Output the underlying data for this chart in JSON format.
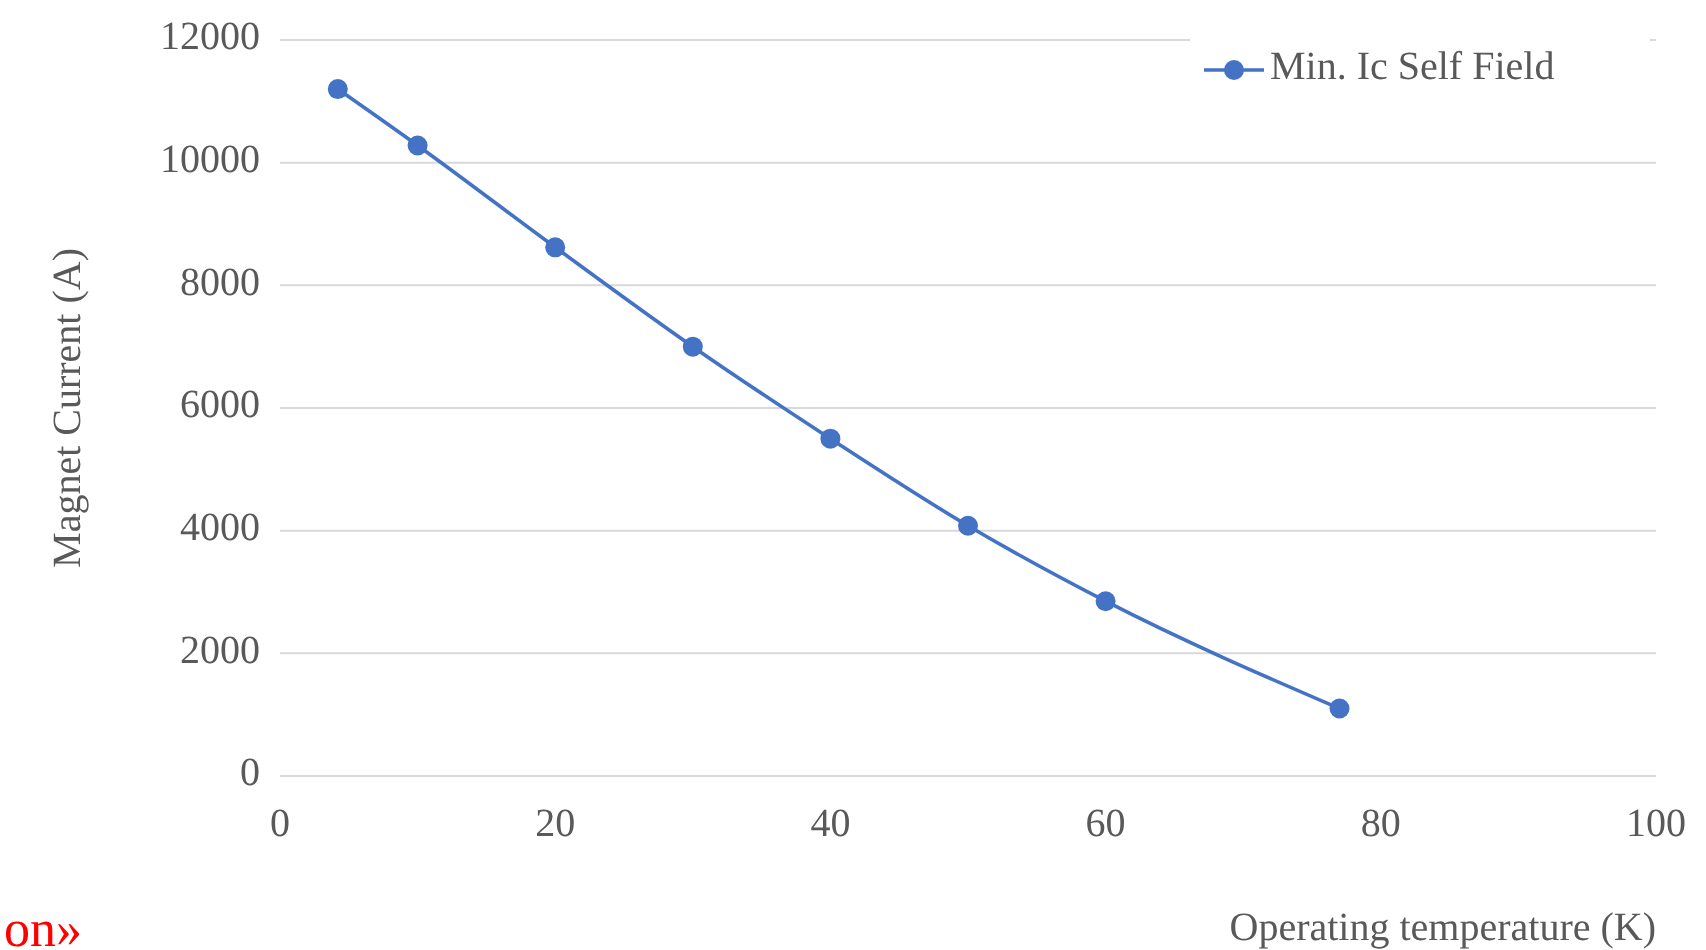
{
  "chart_data": {
    "type": "line",
    "xlabel": "Operating temperature (K)",
    "ylabel": "Magnet Current (A)",
    "x": [
      4.2,
      10,
      20,
      30,
      40,
      50,
      60,
      77
    ],
    "series": [
      {
        "name": "Min. Ic Self Field",
        "color": "#4472c4",
        "values": [
          11200,
          10280,
          8620,
          7000,
          5500,
          4080,
          2850,
          1100
        ]
      }
    ],
    "xlim": [
      0,
      100
    ],
    "xticks": [
      0,
      20,
      40,
      60,
      80,
      100
    ],
    "ylim": [
      0,
      12000
    ],
    "yticks": [
      0,
      2000,
      4000,
      6000,
      8000,
      10000,
      12000
    ],
    "grid": "y",
    "legend": "top right",
    "marker": "circle",
    "line_style": "solid",
    "annotations": [
      "on»"
    ]
  }
}
